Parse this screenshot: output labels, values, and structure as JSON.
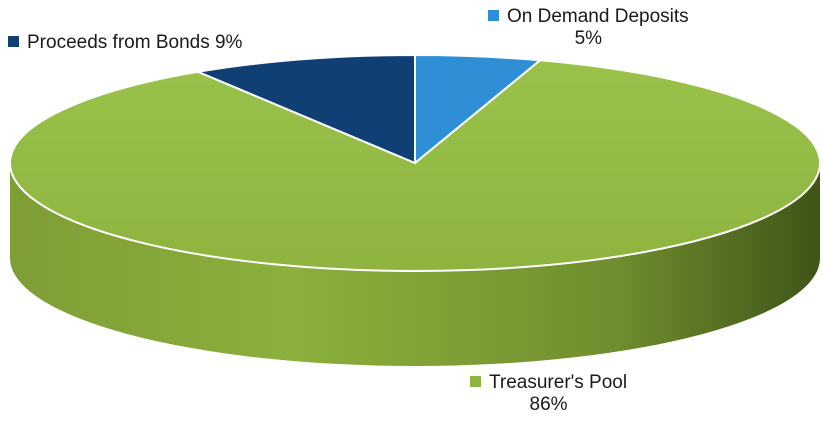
{
  "chart_data": {
    "type": "pie",
    "style": "3d",
    "slices": [
      {
        "label": "On Demand Deposits",
        "value": 5,
        "value_label": "5%",
        "color": "#2f8fd6"
      },
      {
        "label": "Treasurer's Pool",
        "value": 86,
        "value_label": "86%",
        "color": "#8fb43e"
      },
      {
        "label": "Proceeds from Bonds",
        "value": 9,
        "value_label": "9%",
        "color": "#0f3f75"
      }
    ],
    "legend": [
      {
        "label": "Proceeds from Bonds 9%",
        "color": "#0f3f75"
      },
      {
        "label": "On Demand Deposits",
        "value_label": "5%",
        "color": "#2f8fd6"
      },
      {
        "label": "Treasurer's Pool",
        "value_label": "86%",
        "color": "#8fb43e"
      }
    ]
  }
}
